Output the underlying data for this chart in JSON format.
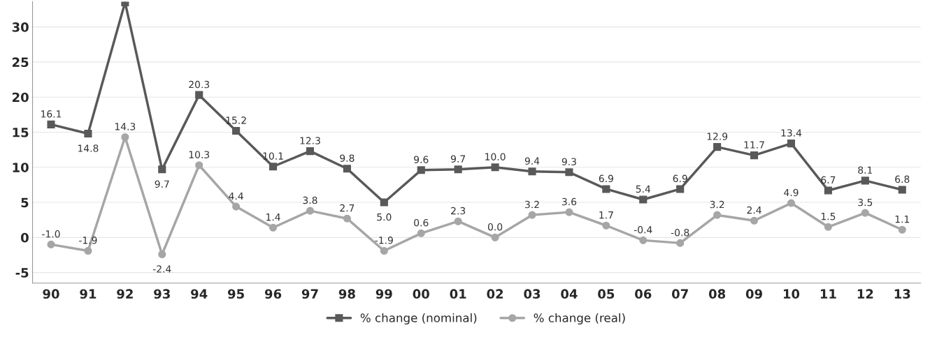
{
  "chart_data": {
    "type": "line",
    "categories": [
      "90",
      "91",
      "92",
      "93",
      "94",
      "95",
      "96",
      "97",
      "98",
      "99",
      "00",
      "01",
      "02",
      "03",
      "04",
      "05",
      "06",
      "07",
      "08",
      "09",
      "10",
      "11",
      "12",
      "13"
    ],
    "series": [
      {
        "name": "% change (nominal)",
        "color": "#595959",
        "marker": "square",
        "values": [
          16.1,
          14.8,
          33.5,
          9.7,
          20.3,
          15.2,
          10.1,
          12.3,
          9.8,
          5.0,
          9.6,
          9.7,
          10.0,
          9.4,
          9.3,
          6.9,
          5.4,
          6.9,
          12.9,
          11.7,
          13.4,
          6.7,
          8.1,
          6.8
        ],
        "value_labels": [
          "16.1",
          "14.8",
          null,
          "9.7",
          "20.3",
          "15.2",
          "10.1",
          "12.3",
          "9.8",
          "5.0",
          "9.6",
          "9.7",
          "10.0",
          "9.4",
          "9.3",
          "6.9",
          "5.4",
          "6.9",
          "12.9",
          "11.7",
          "13.4",
          "6.7",
          "8.1",
          "6.8"
        ]
      },
      {
        "name": "% change (real)",
        "color": "#a6a6a6",
        "marker": "circle",
        "values": [
          -1.0,
          -1.9,
          14.3,
          -2.4,
          10.3,
          4.4,
          1.4,
          3.8,
          2.7,
          -1.9,
          0.6,
          2.3,
          0.0,
          3.2,
          3.6,
          1.7,
          -0.4,
          -0.8,
          3.2,
          2.4,
          4.9,
          1.5,
          3.5,
          1.1
        ],
        "value_labels": [
          "-1.0",
          "-1.9",
          "14.3",
          "-2.4",
          "10.3",
          "4.4",
          "1.4",
          "3.8",
          "2.7",
          "-1.9",
          "0.6",
          "2.3",
          "0.0",
          "3.2",
          "3.6",
          "1.7",
          "-0.4",
          "-0.8",
          "3.2",
          "2.4",
          "4.9",
          "1.5",
          "3.5",
          "1.1"
        ]
      }
    ],
    "ylim": [
      -6.5,
      33.6
    ],
    "yticks": [
      -5,
      0,
      5,
      10,
      15,
      20,
      25,
      30
    ],
    "grid": "y",
    "legend": "bottom"
  }
}
